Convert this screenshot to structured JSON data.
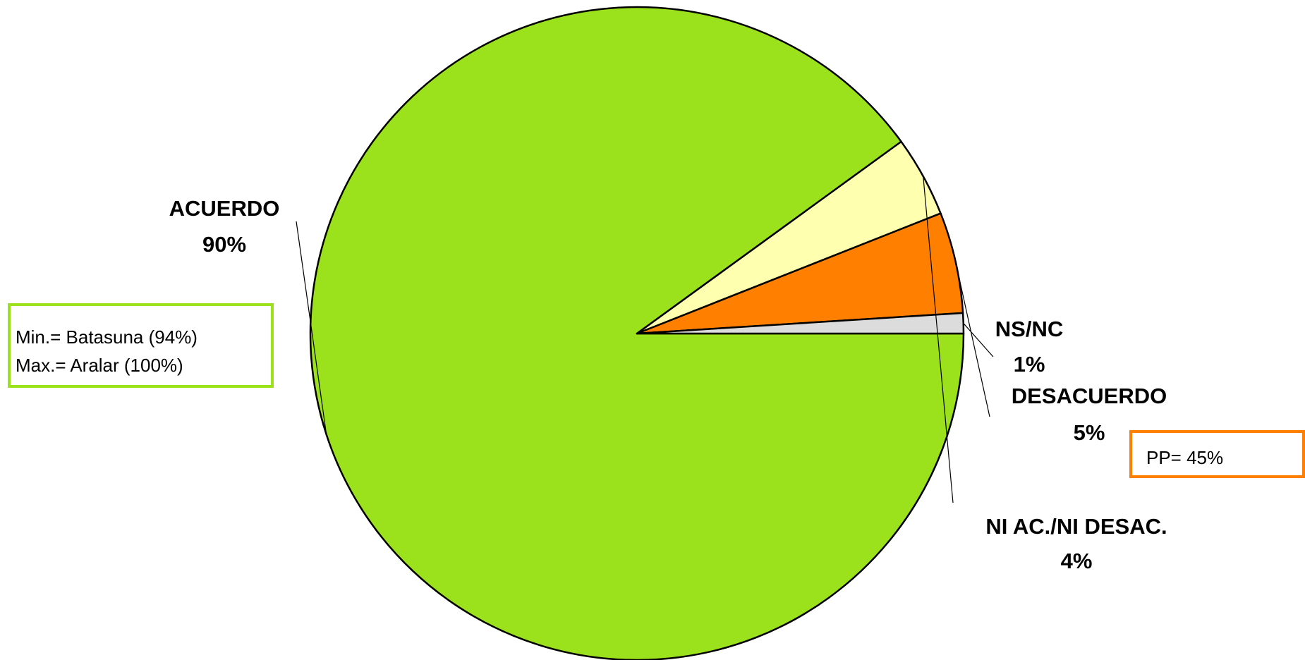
{
  "chart_data": {
    "type": "pie",
    "slices": [
      {
        "label": "ACUERDO",
        "value": 90,
        "value_label": "90%",
        "color": "#9be21d"
      },
      {
        "label": "NI AC./NI DESAC.",
        "value": 4,
        "value_label": "4%",
        "color": "#ffffb0"
      },
      {
        "label": "DESACUERDO",
        "value": 5,
        "value_label": "5%",
        "color": "#ff8000"
      },
      {
        "label": "NS/NC",
        "value": 1,
        "value_label": "1%",
        "color": "#dcdcdc"
      }
    ],
    "annotations": [
      {
        "lines": [
          "Min.= Batasuna (94%)",
          "Max.= Aralar (100%)"
        ],
        "border_color": "#9be21d",
        "attached_to": "ACUERDO"
      },
      {
        "lines": [
          "PP= 45%"
        ],
        "border_color": "#ff8000",
        "attached_to": "DESACUERDO"
      }
    ]
  }
}
